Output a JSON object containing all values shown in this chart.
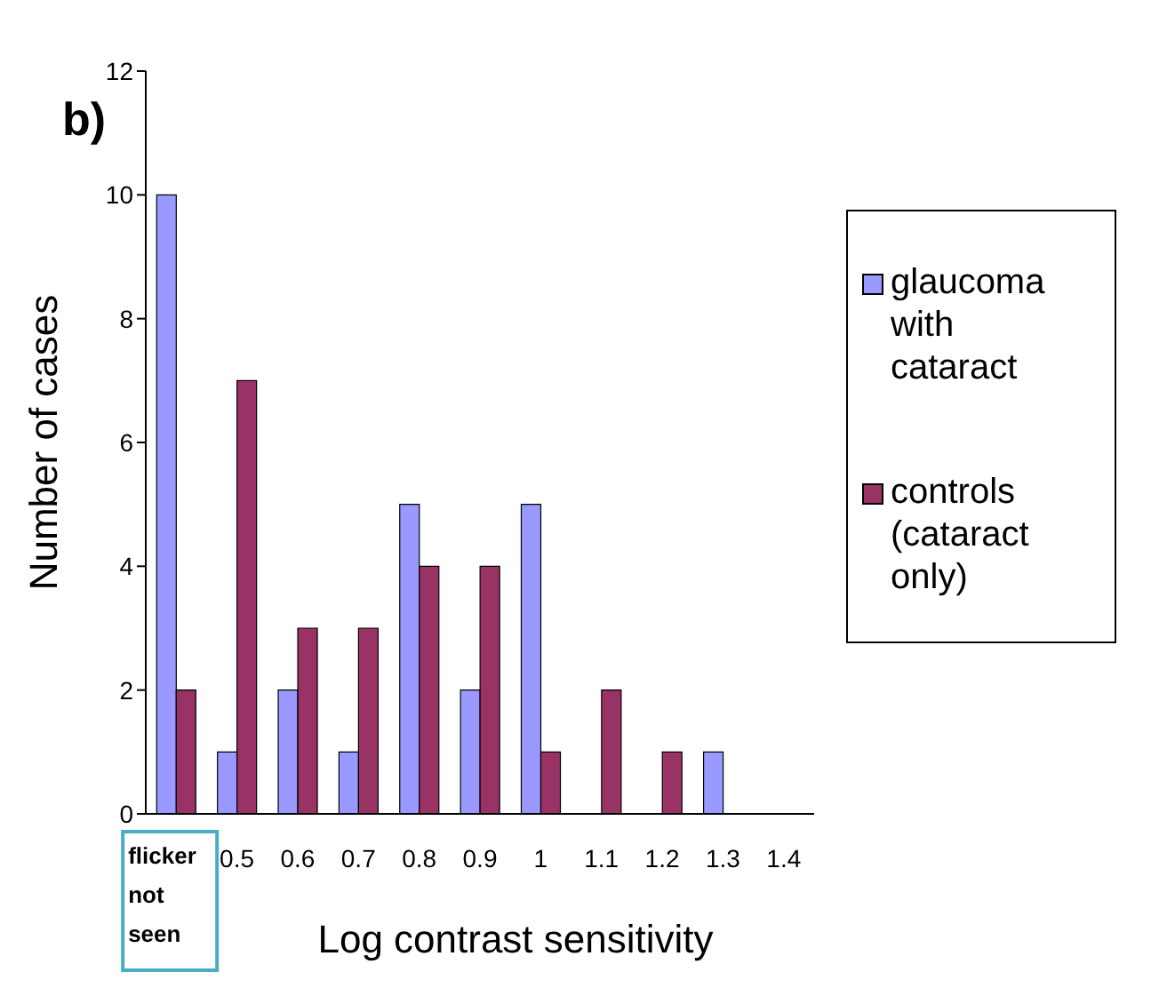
{
  "chart_data": {
    "type": "bar",
    "annotations": [
      "b)"
    ],
    "xlabel": "Log contrast sensitivity",
    "ylabel": "Number of cases",
    "categories": [
      "flicker not seen",
      "0.5",
      "0.6",
      "0.7",
      "0.8",
      "0.9",
      "1",
      "1.1",
      "1.2",
      "1.3",
      "1.4"
    ],
    "series": [
      {
        "name": "glaucoma with cataract",
        "color": "#9999ff",
        "values": [
          10,
          1,
          2,
          1,
          5,
          2,
          5,
          0,
          0,
          1,
          0
        ]
      },
      {
        "name": "controls (cataract only)",
        "color": "#993366",
        "values": [
          2,
          7,
          3,
          3,
          4,
          4,
          1,
          2,
          1,
          0,
          0
        ]
      }
    ],
    "ylim": [
      0,
      12
    ],
    "yticks": [
      0,
      2,
      4,
      6,
      8,
      10,
      12
    ],
    "grid": false,
    "legend": "right"
  }
}
